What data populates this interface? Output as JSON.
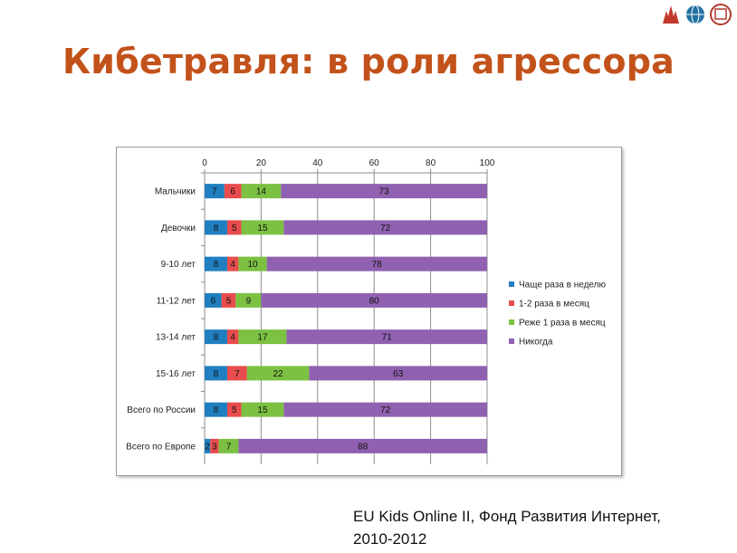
{
  "slide": {
    "title": "Кибетравля: в роли агрессора",
    "source_line1": "EU Kids Online II, Фонд Развития Интернет,",
    "source_line2": "2010-2012"
  },
  "logos": {
    "names": [
      "university-crest-logo",
      "globe-logo",
      "foundation-seal-logo"
    ],
    "colors": [
      "#c0392b",
      "#2471a3",
      "#b03a2e"
    ]
  },
  "chart_data": {
    "type": "bar",
    "orientation": "horizontal",
    "stacked": true,
    "categories": [
      "Мальчики",
      "Девочки",
      "9-10 лет",
      "11-12 лет",
      "13-14 лет",
      "15-16 лет",
      "Всего по России",
      "Всего по Европе"
    ],
    "x_ticks": [
      0,
      20,
      40,
      60,
      80,
      100
    ],
    "xlim": [
      0,
      100
    ],
    "grid": true,
    "legend_position": "right",
    "series": [
      {
        "name": "Чаще раза в неделю",
        "color": "#1f7fbf",
        "values": [
          7,
          8,
          8,
          6,
          8,
          8,
          8,
          2
        ]
      },
      {
        "name": "1-2 раза в месяц",
        "color": "#e84c4c",
        "values": [
          6,
          5,
          4,
          5,
          4,
          7,
          5,
          3
        ]
      },
      {
        "name": "Реже 1 раза в месяц",
        "color": "#7cc142",
        "values": [
          14,
          15,
          10,
          9,
          17,
          22,
          15,
          7
        ]
      },
      {
        "name": "Никогда",
        "color": "#9061b0",
        "values": [
          73,
          72,
          78,
          80,
          71,
          63,
          72,
          88
        ]
      }
    ]
  }
}
